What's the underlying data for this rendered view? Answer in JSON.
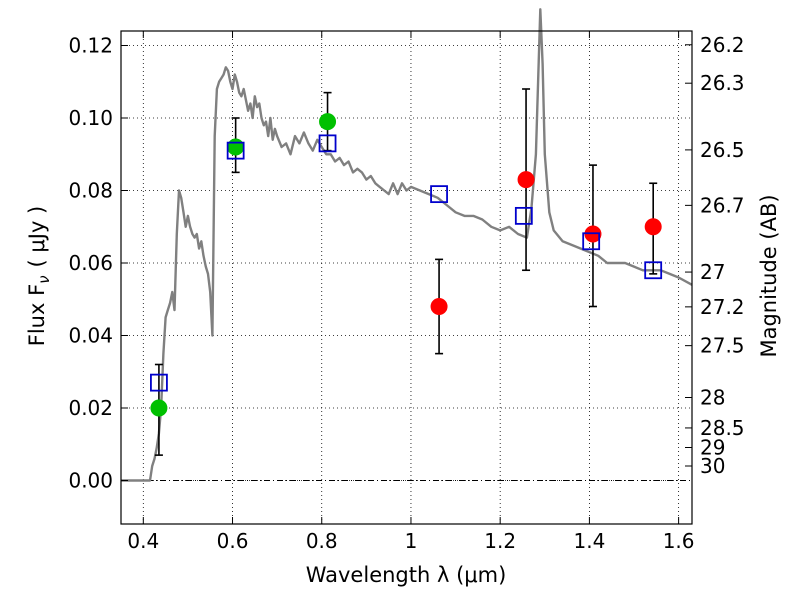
{
  "chart_data": {
    "type": "scatter",
    "xlabel": "Wavelength  λ (μm)",
    "ylabel": "Flux  F",
    "ylabel_sub": "ν",
    "ylabel_unit": "( μJy )",
    "y2label": "Magnitude (AB)",
    "xlim": [
      0.35,
      1.63
    ],
    "ylim": [
      -0.012,
      0.124
    ],
    "grid": true,
    "x_ticks": [
      {
        "value": 0.4,
        "label": "0.4"
      },
      {
        "value": 0.6,
        "label": "0.6"
      },
      {
        "value": 0.8,
        "label": "0.8"
      },
      {
        "value": 1.0,
        "label": "1"
      },
      {
        "value": 1.2,
        "label": "1.2"
      },
      {
        "value": 1.4,
        "label": "1.4"
      },
      {
        "value": 1.6,
        "label": "1.6"
      }
    ],
    "y_ticks": [
      {
        "value": 0.0,
        "label": "0.00"
      },
      {
        "value": 0.02,
        "label": "0.02"
      },
      {
        "value": 0.04,
        "label": "0.04"
      },
      {
        "value": 0.06,
        "label": "0.06"
      },
      {
        "value": 0.08,
        "label": "0.08"
      },
      {
        "value": 0.1,
        "label": "0.10"
      },
      {
        "value": 0.12,
        "label": "0.12"
      }
    ],
    "mag_ticks": [
      {
        "flux": 0.1202,
        "label": "26.2"
      },
      {
        "flux": 0.1096,
        "label": "26.3"
      },
      {
        "flux": 0.0912,
        "label": "26.5"
      },
      {
        "flux": 0.0759,
        "label": "26.7"
      },
      {
        "flux": 0.0575,
        "label": "27"
      },
      {
        "flux": 0.0479,
        "label": "27.2"
      },
      {
        "flux": 0.0372,
        "label": "27.5"
      },
      {
        "flux": 0.0229,
        "label": "28"
      },
      {
        "flux": 0.0145,
        "label": "28.5"
      },
      {
        "flux": 0.0091,
        "label": "29"
      },
      {
        "flux": 0.004,
        "label": "30"
      }
    ],
    "series": [
      {
        "name": "template-sed",
        "kind": "line",
        "color": "#808080",
        "x": [
          0.35,
          0.415,
          0.42,
          0.425,
          0.43,
          0.435,
          0.44,
          0.445,
          0.45,
          0.455,
          0.46,
          0.465,
          0.47,
          0.475,
          0.48,
          0.485,
          0.49,
          0.495,
          0.5,
          0.505,
          0.51,
          0.515,
          0.52,
          0.525,
          0.53,
          0.535,
          0.54,
          0.545,
          0.55,
          0.555,
          0.56,
          0.565,
          0.57,
          0.575,
          0.58,
          0.585,
          0.59,
          0.595,
          0.6,
          0.605,
          0.61,
          0.615,
          0.62,
          0.625,
          0.63,
          0.635,
          0.64,
          0.645,
          0.65,
          0.655,
          0.66,
          0.665,
          0.67,
          0.675,
          0.68,
          0.685,
          0.69,
          0.695,
          0.7,
          0.71,
          0.72,
          0.73,
          0.74,
          0.75,
          0.76,
          0.77,
          0.78,
          0.79,
          0.8,
          0.81,
          0.82,
          0.83,
          0.84,
          0.85,
          0.86,
          0.87,
          0.88,
          0.89,
          0.9,
          0.91,
          0.92,
          0.93,
          0.94,
          0.95,
          0.96,
          0.97,
          0.98,
          0.99,
          1.0,
          1.02,
          1.04,
          1.06,
          1.08,
          1.1,
          1.12,
          1.14,
          1.16,
          1.18,
          1.2,
          1.22,
          1.24,
          1.26,
          1.27,
          1.28,
          1.285,
          1.29,
          1.295,
          1.3,
          1.31,
          1.32,
          1.34,
          1.36,
          1.38,
          1.4,
          1.42,
          1.44,
          1.46,
          1.48,
          1.5,
          1.52,
          1.54,
          1.56,
          1.58,
          1.6,
          1.63
        ],
        "y": [
          0.0,
          0.0,
          0.004,
          0.006,
          0.009,
          0.013,
          0.02,
          0.035,
          0.045,
          0.047,
          0.049,
          0.052,
          0.047,
          0.068,
          0.08,
          0.078,
          0.074,
          0.07,
          0.073,
          0.07,
          0.068,
          0.067,
          0.068,
          0.064,
          0.066,
          0.062,
          0.059,
          0.057,
          0.052,
          0.04,
          0.095,
          0.108,
          0.11,
          0.111,
          0.112,
          0.114,
          0.113,
          0.11,
          0.108,
          0.112,
          0.11,
          0.107,
          0.106,
          0.108,
          0.105,
          0.102,
          0.104,
          0.1,
          0.106,
          0.103,
          0.104,
          0.1,
          0.098,
          0.099,
          0.095,
          0.1,
          0.094,
          0.097,
          0.095,
          0.092,
          0.093,
          0.09,
          0.095,
          0.093,
          0.096,
          0.093,
          0.091,
          0.094,
          0.092,
          0.09,
          0.09,
          0.088,
          0.089,
          0.087,
          0.088,
          0.085,
          0.086,
          0.085,
          0.083,
          0.084,
          0.082,
          0.081,
          0.08,
          0.079,
          0.082,
          0.079,
          0.082,
          0.08,
          0.081,
          0.08,
          0.079,
          0.078,
          0.076,
          0.074,
          0.073,
          0.073,
          0.072,
          0.07,
          0.069,
          0.07,
          0.068,
          0.067,
          0.075,
          0.09,
          0.11,
          0.13,
          0.115,
          0.09,
          0.074,
          0.069,
          0.066,
          0.065,
          0.064,
          0.063,
          0.062,
          0.06,
          0.06,
          0.06,
          0.059,
          0.058,
          0.058,
          0.058,
          0.057,
          0.056,
          0.054
        ]
      },
      {
        "name": "green-detections",
        "kind": "circle",
        "color": "#00c000",
        "points": [
          {
            "x": 0.435,
            "y": 0.02
          },
          {
            "x": 0.607,
            "y": 0.092
          },
          {
            "x": 0.813,
            "y": 0.099
          }
        ]
      },
      {
        "name": "red-detections",
        "kind": "circle",
        "color": "#ff0000",
        "points": [
          {
            "x": 1.063,
            "y": 0.048
          },
          {
            "x": 1.258,
            "y": 0.083
          },
          {
            "x": 1.408,
            "y": 0.068
          },
          {
            "x": 1.543,
            "y": 0.07
          }
        ]
      },
      {
        "name": "model-photometry",
        "kind": "open-square",
        "color": "#0000cc",
        "points": [
          {
            "x": 0.435,
            "y": 0.027
          },
          {
            "x": 0.607,
            "y": 0.091
          },
          {
            "x": 0.813,
            "y": 0.093
          },
          {
            "x": 1.063,
            "y": 0.079
          },
          {
            "x": 1.253,
            "y": 0.073
          },
          {
            "x": 1.404,
            "y": 0.066
          },
          {
            "x": 1.543,
            "y": 0.058
          }
        ]
      }
    ],
    "error_bars": [
      {
        "x": 0.435,
        "low": 0.007,
        "high": 0.032
      },
      {
        "x": 0.607,
        "low": 0.085,
        "high": 0.1
      },
      {
        "x": 0.813,
        "low": 0.091,
        "high": 0.107
      },
      {
        "x": 1.063,
        "low": 0.035,
        "high": 0.061
      },
      {
        "x": 1.258,
        "low": 0.058,
        "high": 0.108
      },
      {
        "x": 1.408,
        "low": 0.048,
        "high": 0.087
      },
      {
        "x": 1.543,
        "low": 0.057,
        "high": 0.082
      }
    ]
  }
}
